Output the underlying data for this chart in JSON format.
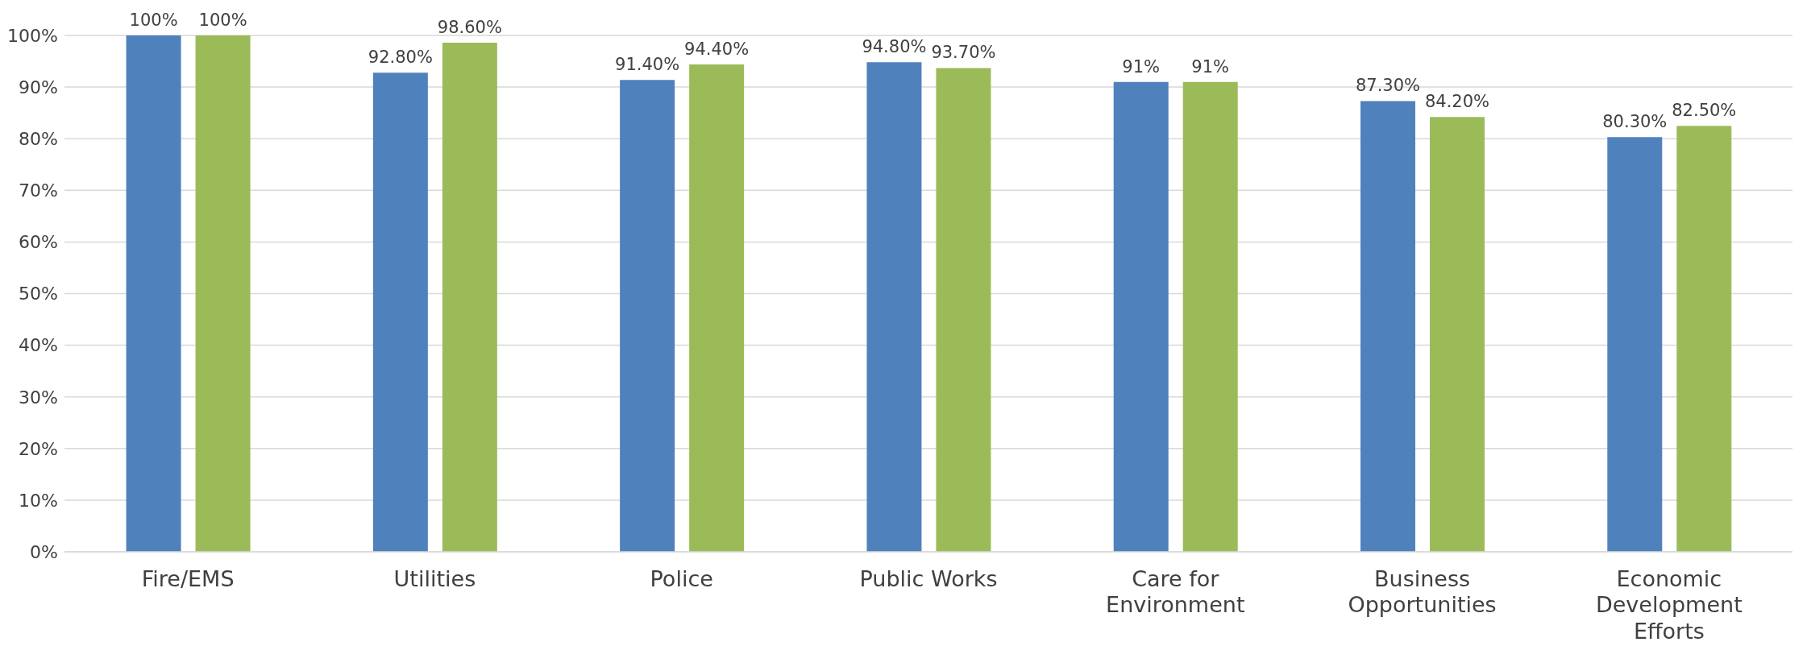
{
  "chart_data": {
    "type": "bar",
    "categories": [
      "Fire/EMS",
      "Utilities",
      "Police",
      "Public Works",
      "Care for Environment",
      "Business Opportunities",
      "Economic Development Efforts"
    ],
    "series": [
      {
        "color": "#4f81bd",
        "values": [
          100,
          92.8,
          91.4,
          94.8,
          91,
          87.3,
          80.3
        ],
        "value_labels": [
          "100%",
          "92.80%",
          "91.40%",
          "94.80%",
          "91%",
          "87.30%",
          "80.30%"
        ]
      },
      {
        "color": "#9bbb59",
        "values": [
          100,
          98.6,
          94.4,
          93.7,
          91,
          84.2,
          82.5
        ],
        "value_labels": [
          "100%",
          "98.60%",
          "94.40%",
          "93.70%",
          "91%",
          "84.20%",
          "82.50%"
        ]
      }
    ],
    "ylim": [
      0,
      100
    ],
    "yticks": [
      {
        "value": 0,
        "label": "0%"
      },
      {
        "value": 10,
        "label": "10%"
      },
      {
        "value": 20,
        "label": "20%"
      },
      {
        "value": 30,
        "label": "30%"
      },
      {
        "value": 40,
        "label": "40%"
      },
      {
        "value": 50,
        "label": "50%"
      },
      {
        "value": 60,
        "label": "60%"
      },
      {
        "value": 70,
        "label": "70%"
      },
      {
        "value": 80,
        "label": "80%"
      },
      {
        "value": 90,
        "label": "90%"
      },
      {
        "value": 100,
        "label": "100%"
      }
    ],
    "grid": "y"
  }
}
